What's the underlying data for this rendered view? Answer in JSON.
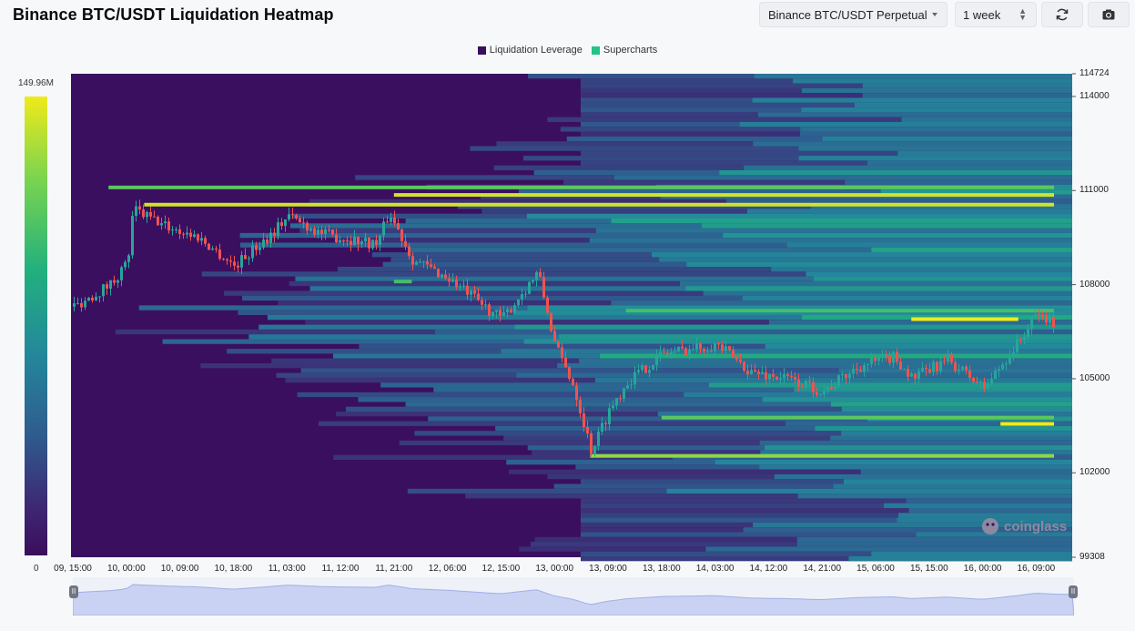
{
  "title": "Binance BTC/USDT Liquidation Heatmap",
  "controls": {
    "pair": "Binance BTC/USDT Perpetual",
    "range": "1 week",
    "refresh_icon": "refresh-icon",
    "camera_icon": "camera-icon"
  },
  "legend": [
    {
      "label": "Liquidation Leverage",
      "color": "#3a0e5c"
    },
    {
      "label": "Supercharts",
      "color": "#21c483"
    }
  ],
  "colorbar": {
    "max_label": "149.96M",
    "min_label": "0"
  },
  "watermark": "coinglass",
  "chart_data": {
    "type": "heatmap",
    "title": "Binance BTC/USDT Liquidation Heatmap",
    "x_tick_labels": [
      "09, 15:00",
      "10, 00:00",
      "10, 09:00",
      "10, 18:00",
      "11, 03:00",
      "11, 12:00",
      "11, 21:00",
      "12, 06:00",
      "12, 15:00",
      "13, 00:00",
      "13, 09:00",
      "13, 18:00",
      "14, 03:00",
      "14, 12:00",
      "14, 21:00",
      "15, 06:00",
      "15, 15:00",
      "16, 00:00",
      "16, 09:00"
    ],
    "y_tick_labels": [
      "114724",
      "114000",
      "111000",
      "108000",
      "105000",
      "102000",
      "99308"
    ],
    "ylim": [
      99308,
      114724
    ],
    "colorscale_range": [
      0,
      149960000
    ],
    "liquidation_bands": [
      {
        "price": 111100,
        "x_from": "09, 21:00",
        "x_to": "16, 12:00",
        "intensity": 0.75
      },
      {
        "price": 110860,
        "x_from": "11, 21:00",
        "x_to": "16, 12:00",
        "intensity": 0.95
      },
      {
        "price": 110550,
        "x_from": "10, 03:00",
        "x_to": "16, 12:00",
        "intensity": 0.95
      },
      {
        "price": 107170,
        "x_from": "13, 12:00",
        "x_to": "16, 12:00",
        "intensity": 0.7
      },
      {
        "price": 106900,
        "x_from": "15, 12:00",
        "x_to": "16, 06:00",
        "intensity": 1.0
      },
      {
        "price": 103760,
        "x_from": "13, 18:00",
        "x_to": "16, 12:00",
        "intensity": 0.75
      },
      {
        "price": 103560,
        "x_from": "16, 03:00",
        "x_to": "16, 12:00",
        "intensity": 1.0
      },
      {
        "price": 102540,
        "x_from": "13, 06:00",
        "x_to": "16, 12:00",
        "intensity": 0.85
      },
      {
        "price": 108100,
        "x_from": "11, 21:00",
        "x_to": "12, 00:00",
        "intensity": 0.7
      }
    ],
    "price_path": [
      {
        "t": "09, 15:00",
        "price": 107300
      },
      {
        "t": "09, 21:00",
        "price": 108000
      },
      {
        "t": "10, 00:00",
        "price": 108700
      },
      {
        "t": "10, 01:00",
        "price": 110400
      },
      {
        "t": "10, 06:00",
        "price": 109900
      },
      {
        "t": "10, 12:00",
        "price": 109500
      },
      {
        "t": "10, 18:00",
        "price": 108600
      },
      {
        "t": "11, 00:00",
        "price": 109600
      },
      {
        "t": "11, 03:00",
        "price": 110200
      },
      {
        "t": "11, 09:00",
        "price": 109600
      },
      {
        "t": "11, 18:00",
        "price": 109300
      },
      {
        "t": "11, 20:00",
        "price": 110300
      },
      {
        "t": "12, 00:00",
        "price": 108800
      },
      {
        "t": "12, 06:00",
        "price": 108200
      },
      {
        "t": "12, 12:00",
        "price": 107300
      },
      {
        "t": "12, 15:00",
        "price": 106900
      },
      {
        "t": "12, 21:00",
        "price": 108400
      },
      {
        "t": "13, 00:00",
        "price": 106000
      },
      {
        "t": "13, 03:00",
        "price": 104800
      },
      {
        "t": "13, 06:00",
        "price": 102700
      },
      {
        "t": "13, 09:00",
        "price": 104000
      },
      {
        "t": "13, 12:00",
        "price": 104900
      },
      {
        "t": "13, 18:00",
        "price": 105800
      },
      {
        "t": "14, 03:00",
        "price": 106100
      },
      {
        "t": "14, 09:00",
        "price": 105200
      },
      {
        "t": "14, 15:00",
        "price": 105000
      },
      {
        "t": "14, 21:00",
        "price": 104600
      },
      {
        "t": "15, 03:00",
        "price": 105400
      },
      {
        "t": "15, 09:00",
        "price": 105700
      },
      {
        "t": "15, 12:00",
        "price": 105000
      },
      {
        "t": "15, 18:00",
        "price": 105600
      },
      {
        "t": "16, 00:00",
        "price": 104700
      },
      {
        "t": "16, 06:00",
        "price": 106200
      },
      {
        "t": "16, 09:00",
        "price": 107100
      },
      {
        "t": "16, 12:00",
        "price": 106700
      }
    ]
  }
}
